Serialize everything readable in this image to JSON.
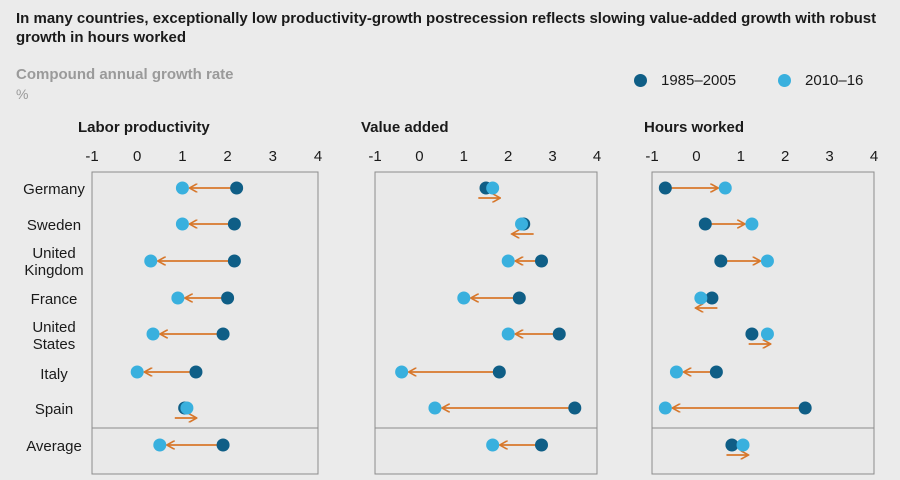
{
  "title": "In many countries, exceptionally low productivity-growth postrecession reflects slowing value-added growth with robust growth in hours worked",
  "subtitle": "Compound annual growth rate",
  "unit": "%",
  "colors": {
    "period_a": "#0f5e86",
    "period_b": "#39b0de",
    "arrow": "#d7772b"
  },
  "legend": {
    "period_a": "1985–2005",
    "period_b": "2010–16"
  },
  "chart_data": {
    "type": "dumbbell",
    "title": "In many countries, exceptionally low productivity-growth postrecession reflects slowing value-added growth with robust growth in hours worked",
    "ylabel": "Compound annual growth rate, %",
    "categories": [
      [
        "Germany"
      ],
      [
        "Sweden"
      ],
      [
        "United",
        "Kingdom"
      ],
      [
        "France"
      ],
      [
        "United",
        "States"
      ],
      [
        "Italy"
      ],
      [
        "Spain"
      ],
      [
        "Average"
      ]
    ],
    "series_names": [
      "1985–2005",
      "2010–16"
    ],
    "xlim": [
      -1,
      4
    ],
    "ticks": [
      "-1",
      "0",
      "1",
      "2",
      "3",
      "4"
    ],
    "panels": [
      {
        "title": "Labor productivity",
        "from": [
          2.2,
          2.15,
          2.15,
          2.0,
          1.9,
          1.3,
          1.05,
          1.9
        ],
        "to": [
          1.0,
          1.0,
          0.3,
          0.9,
          0.35,
          0.0,
          1.1,
          0.5
        ]
      },
      {
        "title": "Value added",
        "from": [
          1.5,
          2.35,
          2.75,
          2.25,
          3.15,
          1.8,
          3.5,
          2.75
        ],
        "to": [
          1.65,
          2.3,
          2.0,
          1.0,
          2.0,
          -0.4,
          0.35,
          1.65
        ]
      },
      {
        "title": "Hours worked",
        "from": [
          -0.7,
          0.2,
          0.55,
          0.35,
          1.25,
          0.45,
          2.45,
          0.8
        ],
        "to": [
          0.65,
          1.25,
          1.6,
          0.1,
          1.6,
          -0.45,
          -0.7,
          1.05
        ]
      }
    ]
  }
}
